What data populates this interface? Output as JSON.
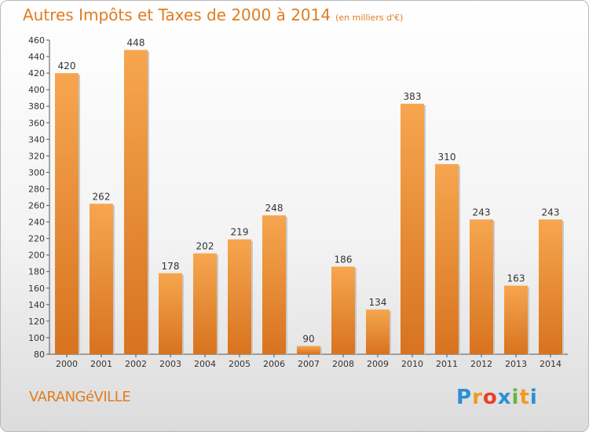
{
  "chart_data": {
    "type": "bar",
    "title": "Autres Impôts et Taxes de 2000 à 2014",
    "subtitle": "(en milliers d'€)",
    "categories": [
      "2000",
      "2001",
      "2002",
      "2003",
      "2004",
      "2005",
      "2006",
      "2007",
      "2008",
      "2009",
      "2010",
      "2011",
      "2012",
      "2013",
      "2014"
    ],
    "values": [
      420,
      262,
      448,
      178,
      202,
      219,
      248,
      90,
      186,
      134,
      383,
      310,
      243,
      163,
      243
    ],
    "ylim": [
      80,
      460
    ],
    "yticks": [
      80,
      100,
      120,
      140,
      160,
      180,
      200,
      220,
      240,
      260,
      280,
      300,
      320,
      340,
      360,
      380,
      400,
      420,
      440,
      460
    ],
    "grid": false,
    "bar_color": "#f0a04b"
  },
  "town": "VARANGéVILLE",
  "logo": {
    "letters": [
      "P",
      "r",
      "o",
      "x",
      "i",
      "t",
      "i"
    ],
    "colors": [
      "#2a8fd6",
      "#f29a1e",
      "#e8402a",
      "#2a8fd6",
      "#6cb33f",
      "#f29a1e",
      "#2a8fd6"
    ]
  }
}
